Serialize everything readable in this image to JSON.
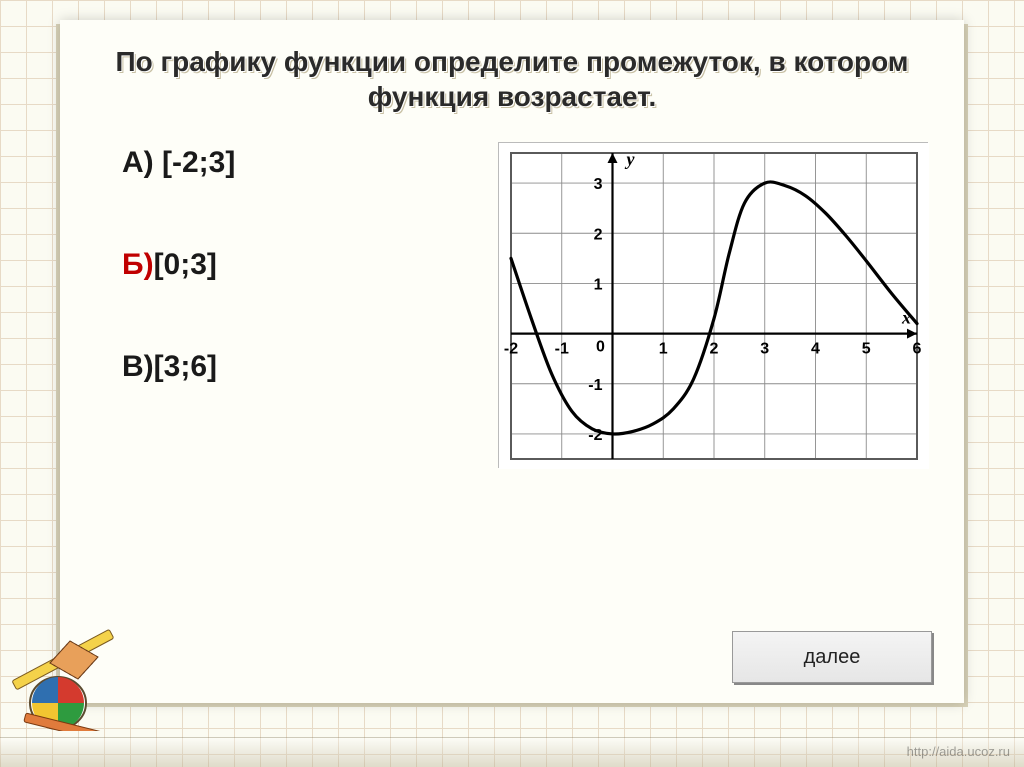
{
  "title": "По графику функции определите промежуток, в котором функция возрастает.",
  "answers": [
    {
      "key": "А)",
      "text": " [-2;3]",
      "correct": false
    },
    {
      "key": "Б)",
      "text": "[0;3]",
      "correct": true
    },
    {
      "key": "В)",
      "text": "[3;6]",
      "correct": false
    }
  ],
  "answer_color_default": "#1a1a1a",
  "answer_color_correct": "#c00000",
  "next_button": "далее",
  "source_link": "http://aida.ucoz.ru",
  "chart": {
    "type": "line",
    "xlim": [
      -2,
      6
    ],
    "ylim": [
      -2.5,
      3.6
    ],
    "xtick_positions": [
      -2,
      -1,
      0,
      1,
      2,
      3,
      4,
      5,
      6
    ],
    "xtick_labels": [
      "-2",
      "-1",
      "0",
      "1",
      "2",
      "3",
      "4",
      "5",
      "6"
    ],
    "ytick_positions": [
      -2,
      -1,
      1,
      2,
      3
    ],
    "ytick_labels": [
      "-2",
      "-1",
      "1",
      "2",
      "3"
    ],
    "x_axis_label": "x",
    "y_axis_label": "y",
    "grid_color": "#5a5a5a",
    "grid_minor_color": "#8b8b8b",
    "axis_color": "#000000",
    "curve_color": "#000000",
    "curve_width": 3.2,
    "background_color": "#ffffff",
    "data": [
      {
        "x": -2.0,
        "y": 1.5
      },
      {
        "x": -1.6,
        "y": 0.3
      },
      {
        "x": -1.2,
        "y": -0.8
      },
      {
        "x": -0.8,
        "y": -1.55
      },
      {
        "x": -0.4,
        "y": -1.9
      },
      {
        "x": 0.0,
        "y": -2.0
      },
      {
        "x": 0.4,
        "y": -1.95
      },
      {
        "x": 0.8,
        "y": -1.8
      },
      {
        "x": 1.2,
        "y": -1.5
      },
      {
        "x": 1.6,
        "y": -0.9
      },
      {
        "x": 2.0,
        "y": 0.3
      },
      {
        "x": 2.3,
        "y": 1.6
      },
      {
        "x": 2.6,
        "y": 2.6
      },
      {
        "x": 3.0,
        "y": 3.0
      },
      {
        "x": 3.4,
        "y": 2.95
      },
      {
        "x": 3.8,
        "y": 2.75
      },
      {
        "x": 4.2,
        "y": 2.4
      },
      {
        "x": 4.6,
        "y": 1.95
      },
      {
        "x": 5.0,
        "y": 1.45
      },
      {
        "x": 5.5,
        "y": 0.8
      },
      {
        "x": 6.0,
        "y": 0.2
      }
    ]
  }
}
